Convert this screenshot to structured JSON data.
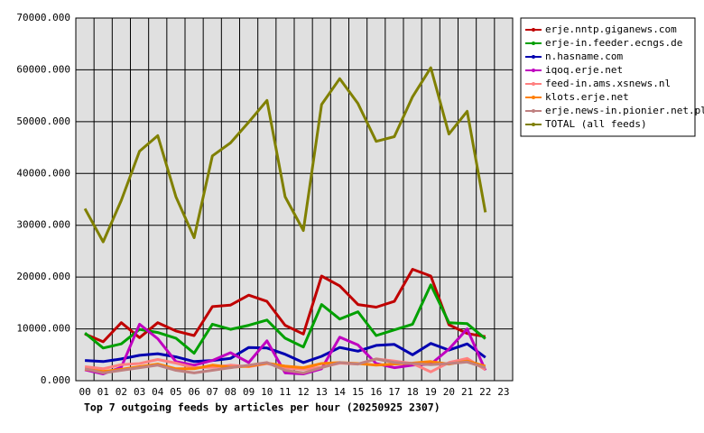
{
  "chart_data": {
    "type": "line",
    "title": "Top 7 outgoing feeds by articles per hour (20250925 2307)",
    "categories": [
      "00",
      "01",
      "02",
      "03",
      "04",
      "05",
      "06",
      "07",
      "08",
      "09",
      "10",
      "11",
      "12",
      "13",
      "14",
      "15",
      "16",
      "17",
      "18",
      "19",
      "20",
      "21",
      "22",
      "23"
    ],
    "ylim": [
      0,
      70000
    ],
    "yticks": [
      {
        "value": 0,
        "label": "0.000"
      },
      {
        "value": 10000,
        "label": "10000.000"
      },
      {
        "value": 20000,
        "label": "20000.000"
      },
      {
        "value": 30000,
        "label": "30000.000"
      },
      {
        "value": 40000,
        "label": "40000.000"
      },
      {
        "value": 50000,
        "label": "50000.000"
      },
      {
        "value": 60000,
        "label": "60000.000"
      },
      {
        "value": 70000,
        "label": "70000.000"
      }
    ],
    "grid": true,
    "legend": "right",
    "series": [
      {
        "name": "erje.nntp.giganews.com",
        "color": "#c00000",
        "values": [
          9000,
          7500,
          11200,
          8300,
          11200,
          9600,
          8700,
          14300,
          14600,
          16500,
          15300,
          10700,
          9000,
          20200,
          18300,
          14700,
          14200,
          15300,
          21500,
          20200,
          10800,
          9100,
          8500,
          null
        ]
      },
      {
        "name": "erje-in.feeder.ecngs.de",
        "color": "#00a000",
        "values": [
          9200,
          6300,
          7100,
          9900,
          9300,
          8200,
          5300,
          10900,
          9900,
          10700,
          11700,
          8200,
          6500,
          14700,
          11900,
          13300,
          8700,
          9800,
          10900,
          18500,
          11200,
          11000,
          8100,
          null
        ]
      },
      {
        "name": "n.hasname.com",
        "color": "#0000b0",
        "values": [
          3900,
          3700,
          4200,
          4900,
          5200,
          4600,
          3700,
          3900,
          4300,
          6400,
          6300,
          5100,
          3500,
          4700,
          6400,
          5700,
          6800,
          7000,
          5000,
          7200,
          5900,
          7100,
          4500,
          null
        ]
      },
      {
        "name": "iqoq.erje.net",
        "color": "#c000c0",
        "values": [
          2100,
          1300,
          2600,
          10900,
          8100,
          3700,
          3000,
          3900,
          5400,
          3500,
          7700,
          1500,
          1300,
          2300,
          8400,
          6900,
          3300,
          2500,
          3000,
          3200,
          6100,
          10000,
          2000,
          null
        ]
      },
      {
        "name": "feed-in.ams.xsnews.nl",
        "color": "#ff8080",
        "values": [
          2700,
          2300,
          3100,
          3300,
          4100,
          3400,
          2500,
          2600,
          3000,
          2700,
          3300,
          2500,
          2200,
          2600,
          3400,
          3200,
          4200,
          3800,
          3300,
          1700,
          3500,
          4300,
          2100,
          null
        ]
      },
      {
        "name": "klots.erje.net",
        "color": "#ff8000",
        "values": [
          2200,
          1800,
          2200,
          2700,
          3200,
          2300,
          2300,
          3000,
          2600,
          2800,
          3400,
          2800,
          2500,
          3300,
          3500,
          3300,
          3000,
          3200,
          3400,
          3700,
          3200,
          3800,
          2800,
          null
        ]
      },
      {
        "name": "erje.news-in.pionier.net.pl",
        "color": "#c08080",
        "values": [
          2300,
          1500,
          2000,
          2500,
          3000,
          2000,
          1500,
          2000,
          2500,
          3000,
          3500,
          2000,
          1500,
          2500,
          3500,
          3200,
          4200,
          3500,
          3300,
          3100,
          3300,
          3600,
          2500,
          null
        ]
      },
      {
        "name": "TOTAL (all feeds)",
        "color": "#808000",
        "values": [
          33200,
          26800,
          34800,
          44300,
          47300,
          35500,
          27600,
          43400,
          45900,
          49900,
          54100,
          35500,
          29000,
          53300,
          58300,
          53500,
          46200,
          47100,
          54800,
          60400,
          47600,
          52000,
          32500,
          null
        ]
      }
    ]
  }
}
